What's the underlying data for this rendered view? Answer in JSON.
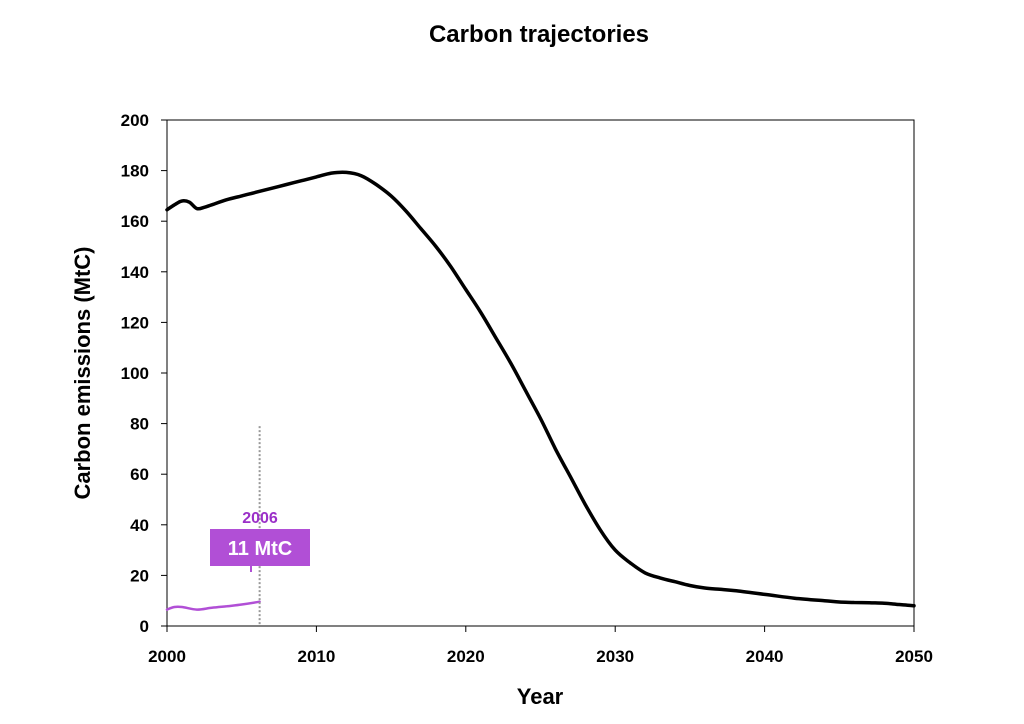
{
  "chart_data": {
    "type": "line",
    "title": "Carbon trajectories",
    "xlabel": "Year",
    "ylabel": "Carbon emissions (MtC)",
    "xlim": [
      2000,
      2050
    ],
    "ylim": [
      0,
      200
    ],
    "xticks": [
      2000,
      2010,
      2020,
      2030,
      2040,
      2050
    ],
    "yticks": [
      0,
      20,
      40,
      60,
      80,
      100,
      120,
      140,
      160,
      180,
      200
    ],
    "grid": false,
    "legend": "none",
    "series": [
      {
        "color": "#000000",
        "x": [
          2000,
          2000.5,
          2001,
          2001.5,
          2002,
          2002.5,
          2003,
          2004,
          2005,
          2006,
          2007,
          2008,
          2009,
          2010,
          2011,
          2012,
          2013,
          2014,
          2015,
          2016,
          2017,
          2018,
          2019,
          2020,
          2021,
          2022,
          2023,
          2024,
          2025,
          2026,
          2027,
          2028,
          2029,
          2030,
          2031,
          2032,
          2033,
          2034,
          2035,
          2036,
          2037,
          2038,
          2040,
          2042,
          2044,
          2045,
          2046,
          2047,
          2048,
          2049,
          2050
        ],
        "y": [
          164.5,
          166.5,
          168,
          167.5,
          165,
          165.5,
          166.5,
          168.5,
          170,
          171.5,
          173,
          174.5,
          176,
          177.5,
          179,
          179.3,
          178,
          174.5,
          170,
          164,
          157,
          150,
          142,
          133,
          124,
          114,
          104,
          93,
          82,
          70,
          59,
          48,
          38,
          30,
          25,
          21,
          19,
          17.5,
          16,
          15,
          14.5,
          14,
          12.5,
          11,
          10,
          9.5,
          9.3,
          9.2,
          9,
          8.5,
          8
        ]
      },
      {
        "color": "#b14fd6",
        "x": [
          2000,
          2000.5,
          2001,
          2002,
          2003,
          2004,
          2005,
          2006.2
        ],
        "y": [
          6.5,
          7.5,
          7.5,
          6.5,
          7.2,
          7.8,
          8.5,
          9.6
        ]
      }
    ],
    "annotations": [
      {
        "type": "vline",
        "x": 2006.2,
        "y_top": 79,
        "color": "#999999"
      },
      {
        "type": "label",
        "text": "2006",
        "color": "#9b30c8"
      },
      {
        "type": "box",
        "text": "11 MtC",
        "color": "#b14fd6"
      }
    ]
  }
}
